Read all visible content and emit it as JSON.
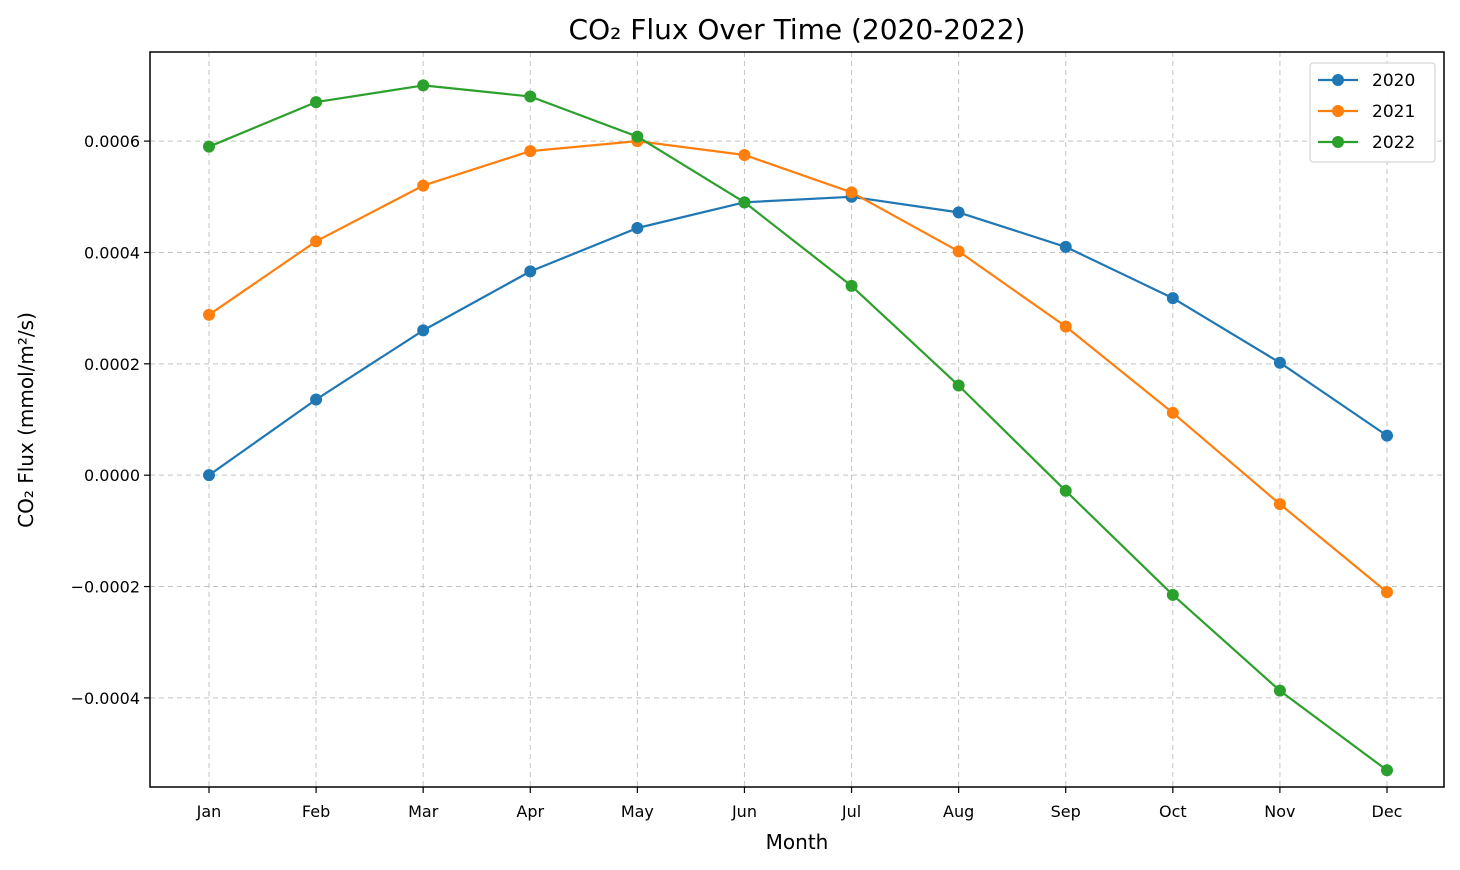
{
  "chart_data": {
    "type": "line",
    "title": "CO₂ Flux Over Time (2020-2022)",
    "xlabel": "Month",
    "ylabel": "CO₂ Flux (mmol/m²/s)",
    "categories": [
      "Jan",
      "Feb",
      "Mar",
      "Apr",
      "May",
      "Jun",
      "Jul",
      "Aug",
      "Sep",
      "Oct",
      "Nov",
      "Dec"
    ],
    "ylim": [
      -0.00056,
      0.00076
    ],
    "yticks": [
      -0.0004,
      -0.0002,
      0.0,
      0.0002,
      0.0004,
      0.0006
    ],
    "ytick_labels": [
      "−0.0004",
      "−0.0002",
      "0.0000",
      "0.0002",
      "0.0004",
      "0.0006"
    ],
    "grid": true,
    "legend_position": "top-right",
    "series": [
      {
        "name": "2020",
        "color": "#1f77b4",
        "values": [
          0.0,
          0.000136,
          0.00026,
          0.000366,
          0.000444,
          0.00049,
          0.0005,
          0.000472,
          0.00041,
          0.000318,
          0.000202,
          7.1e-05
        ]
      },
      {
        "name": "2021",
        "color": "#ff7f0e",
        "values": [
          0.000288,
          0.00042,
          0.00052,
          0.000582,
          0.0006,
          0.000575,
          0.000508,
          0.000402,
          0.000267,
          0.000112,
          -5.2e-05,
          -0.00021
        ]
      },
      {
        "name": "2022",
        "color": "#2ca02c",
        "values": [
          0.00059,
          0.00067,
          0.0007,
          0.00068,
          0.000608,
          0.00049,
          0.00034,
          0.000161,
          -2.8e-05,
          -0.000215,
          -0.000387,
          -0.00053
        ]
      }
    ]
  }
}
